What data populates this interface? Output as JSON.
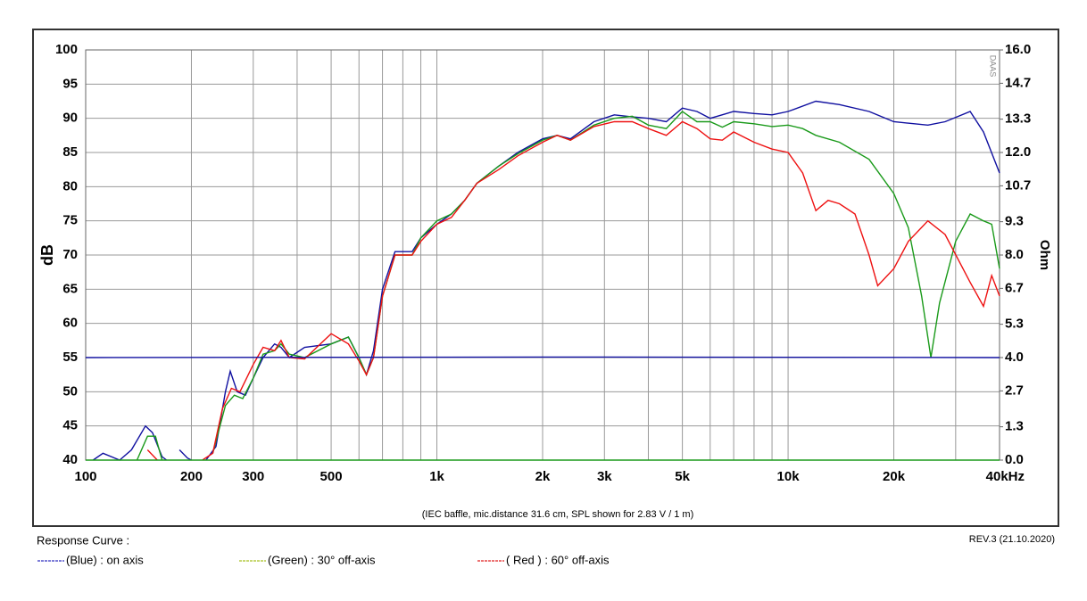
{
  "chart_data": {
    "type": "line",
    "note": "(IEC baffle, mic.distance 31.6 cm, SPL shown for 2.83 V / 1 m)",
    "legend_title": "Response Curve :",
    "revision": "REV.3 (21.10.2020)",
    "watermark": "DAAS",
    "ylabel": "dB",
    "y2label": "Ohm",
    "xscale": "log",
    "grid": true,
    "xlim": [
      100,
      40000
    ],
    "xticks": [
      100,
      200,
      300,
      500,
      {
        "value": 1000,
        "label": "1k"
      },
      {
        "value": 2000,
        "label": "2k"
      },
      {
        "value": 3000,
        "label": "3k"
      },
      {
        "value": 5000,
        "label": "5k"
      },
      {
        "value": 10000,
        "label": "10k"
      },
      {
        "value": 20000,
        "label": "20k"
      },
      {
        "value": 40000,
        "label": "40kHz"
      }
    ],
    "xminorticks": [
      400,
      600,
      700,
      800,
      900,
      4000,
      6000,
      7000,
      8000,
      9000,
      30000
    ],
    "ylim": [
      40,
      100
    ],
    "yticks": [
      40,
      45,
      50,
      55,
      60,
      65,
      70,
      75,
      80,
      85,
      90,
      95,
      100
    ],
    "y2lim": [
      0,
      16
    ],
    "y2ticks": [
      {
        "value": 0,
        "label": "0.0"
      },
      1.3,
      2.7,
      {
        "value": 4,
        "label": "4.0"
      },
      5.3,
      6.7,
      {
        "value": 8,
        "label": "8.0"
      },
      9.3,
      10.7,
      {
        "value": 12,
        "label": "12.0"
      },
      13.3,
      14.7,
      {
        "value": 16,
        "label": "16.0"
      }
    ],
    "series": [
      {
        "name": "(Blue)  : on axis",
        "color": "#1010a0",
        "legend_color": "#3030c0",
        "x": [
          105,
          112,
          125,
          135,
          148,
          155,
          165,
          170,
          178,
          185,
          195,
          200,
          210,
          220,
          235,
          250,
          258,
          270,
          285,
          300,
          320,
          345,
          360,
          380,
          420,
          500,
          560,
          600,
          630,
          660,
          700,
          760,
          850,
          900,
          1000,
          1100,
          1200,
          1300,
          1500,
          1700,
          2000,
          2200,
          2400,
          2800,
          3200,
          3600,
          4000,
          4500,
          5000,
          5500,
          6000,
          7000,
          8000,
          9000,
          10000,
          12000,
          14000,
          17000,
          20000,
          25000,
          28000,
          33000,
          36000,
          40000
        ],
        "values": [
          40,
          41,
          40,
          41.5,
          45,
          44,
          40.5,
          40,
          null,
          41.5,
          40.3,
          40,
          null,
          40,
          42,
          50,
          53,
          50,
          49.5,
          52,
          55,
          57,
          56.5,
          55,
          56.5,
          57,
          58,
          55,
          52.5,
          56,
          65,
          70.5,
          70.5,
          72.5,
          74.5,
          76,
          78,
          80.5,
          83,
          85,
          87,
          87.5,
          87,
          89.5,
          90.5,
          90.2,
          90,
          89.5,
          91.5,
          91,
          90,
          91,
          90.7,
          90.5,
          91,
          92.5,
          92,
          91,
          89.5,
          89,
          89.5,
          91,
          88,
          82
        ]
      },
      {
        "name": "(Green) : 30° off-axis",
        "color": "#1a9a1a",
        "legend_color": "#a8c020",
        "x": [
          140,
          150,
          158,
          165,
          175,
          230,
          250,
          265,
          280,
          300,
          320,
          345,
          360,
          380,
          420,
          500,
          560,
          600,
          630,
          660,
          700,
          760,
          850,
          900,
          1000,
          1100,
          1200,
          1300,
          1500,
          1700,
          2000,
          2200,
          2400,
          2800,
          3200,
          3600,
          4000,
          4500,
          5000,
          5500,
          6000,
          6500,
          7000,
          8000,
          9000,
          10000,
          11000,
          12000,
          14000,
          17000,
          20000,
          22000,
          24000,
          25500,
          27000,
          30000,
          33000,
          36000,
          38000,
          40000
        ],
        "values": [
          40,
          43.5,
          43.5,
          40,
          null,
          41,
          48,
          49.5,
          49,
          52,
          55.5,
          56,
          57,
          55.5,
          55,
          57,
          58,
          55,
          52.5,
          55,
          64,
          70,
          70,
          72.5,
          75,
          76,
          78,
          80.5,
          83,
          84.8,
          86.8,
          87.5,
          86.8,
          89,
          90,
          90.3,
          89,
          88.5,
          91,
          89.5,
          89.5,
          88.7,
          89.5,
          89.2,
          88.8,
          89,
          88.5,
          87.5,
          86.5,
          84,
          79,
          74,
          64,
          55,
          63,
          72,
          76,
          75,
          74.5,
          68
        ]
      },
      {
        "name": "( Red ) : 60° off-axis",
        "color": "#ee1111",
        "legend_color": "#e02020",
        "x": [
          150,
          160,
          170,
          215,
          230,
          245,
          260,
          275,
          300,
          320,
          345,
          360,
          380,
          420,
          500,
          560,
          600,
          630,
          660,
          700,
          760,
          850,
          900,
          1000,
          1100,
          1200,
          1300,
          1500,
          1700,
          2000,
          2200,
          2400,
          2800,
          3200,
          3600,
          4000,
          4500,
          5000,
          5500,
          6000,
          6500,
          7000,
          8000,
          9000,
          10000,
          11000,
          12000,
          13000,
          14000,
          15500,
          17000,
          18000,
          20000,
          22000,
          25000,
          28000,
          33000,
          36000,
          38000,
          40000
        ],
        "values": [
          41.5,
          40,
          null,
          40,
          41,
          47.5,
          50.5,
          50,
          54,
          56.5,
          56,
          57.5,
          55,
          54.8,
          58.5,
          57,
          54.5,
          52.5,
          55,
          64,
          70,
          70,
          72,
          74.5,
          75.5,
          78,
          80.5,
          82.5,
          84.5,
          86.5,
          87.5,
          86.8,
          88.8,
          89.5,
          89.5,
          88.5,
          87.5,
          89.5,
          88.5,
          87,
          86.8,
          88,
          86.5,
          85.5,
          85,
          82,
          76.5,
          78,
          77.5,
          76,
          70,
          65.5,
          68,
          72,
          75,
          73,
          66,
          62.5,
          67,
          64
        ]
      },
      {
        "color": "#1010a0",
        "axis": "y2",
        "x": [
          100,
          2000,
          3000,
          40000
        ],
        "values": [
          4.0,
          4.02,
          4.02,
          4.0
        ]
      },
      {
        "color": "#1a9a1a",
        "axis": "y2",
        "x": [
          100,
          40000
        ],
        "values": [
          0,
          0
        ]
      }
    ]
  }
}
